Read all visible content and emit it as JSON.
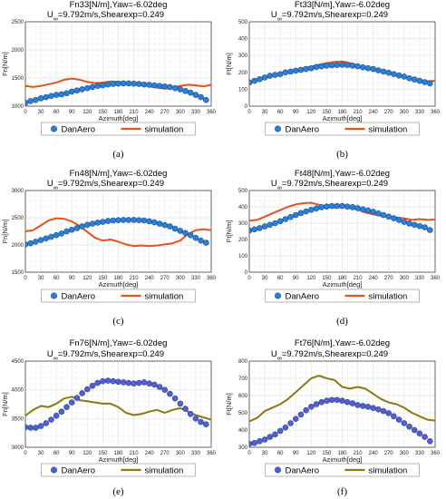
{
  "colors": {
    "danaero_face": "#2b7fd4",
    "danaero_face_dark": "#5a5ad2",
    "danaero_edge": "#1f4f8f",
    "sim_red": "#e8521e",
    "sim_olive": "#8a7a10",
    "grid": "#e6e6e6",
    "axis": "#444444"
  },
  "chart_data": [
    {
      "type": "line",
      "panel_label": "(a)",
      "title_line1": "Fn33[N/m],Yaw=-6.02deg",
      "title_line2_prefix": "U",
      "title_line2_sub": "∞",
      "title_line2_rest": "=9.792m/s,Shearexp=0.249",
      "xlabel": "Azimuth[deg]",
      "ylabel": "Fn[N/m]",
      "xlim": [
        0,
        360
      ],
      "ylim": [
        1000,
        2500
      ],
      "xticks": [
        0,
        30,
        60,
        90,
        120,
        150,
        180,
        210,
        240,
        270,
        300,
        330,
        360
      ],
      "yticks": [
        1000,
        1500,
        2000,
        2500
      ],
      "grid": true,
      "sim_color": "sim_red",
      "marker_color": "danaero_face",
      "legend": {
        "position": "bottom",
        "entries": [
          "DanAero",
          "simulation"
        ]
      },
      "series": [
        {
          "name": "DanAero",
          "x": [
            0,
            10,
            20,
            30,
            40,
            50,
            60,
            70,
            80,
            90,
            100,
            110,
            120,
            130,
            140,
            150,
            160,
            170,
            180,
            190,
            200,
            210,
            220,
            230,
            240,
            250,
            260,
            270,
            280,
            290,
            300,
            310,
            320,
            330,
            340,
            350
          ],
          "values": [
            1060,
            1090,
            1110,
            1140,
            1160,
            1180,
            1200,
            1210,
            1230,
            1260,
            1280,
            1300,
            1320,
            1340,
            1360,
            1370,
            1385,
            1395,
            1400,
            1405,
            1405,
            1400,
            1395,
            1385,
            1380,
            1370,
            1360,
            1350,
            1340,
            1320,
            1300,
            1270,
            1240,
            1200,
            1160,
            1110
          ]
        },
        {
          "name": "simulation",
          "x": [
            0,
            15,
            30,
            45,
            60,
            75,
            90,
            105,
            120,
            135,
            150,
            165,
            180,
            195,
            210,
            225,
            240,
            255,
            270,
            285,
            300,
            315,
            330,
            345,
            360
          ],
          "values": [
            1360,
            1340,
            1360,
            1390,
            1420,
            1470,
            1490,
            1470,
            1430,
            1410,
            1420,
            1440,
            1430,
            1410,
            1400,
            1390,
            1350,
            1330,
            1310,
            1330,
            1360,
            1380,
            1370,
            1350,
            1380
          ]
        }
      ]
    },
    {
      "type": "line",
      "panel_label": "(b)",
      "title_line1": "Ft33[N/m],Yaw=-6.02deg",
      "title_line2_prefix": "U",
      "title_line2_sub": "∞",
      "title_line2_rest": "=9.792m/s,Shearexp=0.249",
      "xlabel": "Azimuth[deg]",
      "ylabel": "Ft[N/m]",
      "xlim": [
        0,
        360
      ],
      "ylim": [
        0,
        500
      ],
      "xticks": [
        0,
        30,
        60,
        90,
        120,
        150,
        180,
        210,
        240,
        270,
        300,
        330,
        360
      ],
      "yticks": [
        0,
        100,
        200,
        300,
        400,
        500
      ],
      "grid": true,
      "sim_color": "sim_red",
      "marker_color": "danaero_face",
      "legend": {
        "position": "bottom",
        "entries": [
          "DanAero",
          "simulation"
        ]
      },
      "series": [
        {
          "name": "DanAero",
          "x": [
            0,
            10,
            20,
            30,
            40,
            50,
            60,
            70,
            80,
            90,
            100,
            110,
            120,
            130,
            140,
            150,
            160,
            170,
            180,
            190,
            200,
            210,
            220,
            230,
            240,
            250,
            260,
            270,
            280,
            290,
            300,
            310,
            320,
            330,
            340,
            350
          ],
          "values": [
            140,
            150,
            160,
            170,
            180,
            185,
            190,
            200,
            205,
            210,
            215,
            220,
            225,
            232,
            236,
            240,
            242,
            244,
            245,
            244,
            240,
            236,
            230,
            225,
            220,
            212,
            205,
            198,
            190,
            182,
            175,
            165,
            158,
            150,
            142,
            135
          ]
        },
        {
          "name": "simulation",
          "x": [
            0,
            15,
            30,
            45,
            60,
            75,
            90,
            105,
            120,
            135,
            150,
            165,
            180,
            195,
            210,
            225,
            240,
            255,
            270,
            285,
            300,
            315,
            330,
            345,
            360
          ],
          "values": [
            140,
            150,
            165,
            180,
            195,
            205,
            215,
            225,
            235,
            245,
            255,
            262,
            265,
            255,
            240,
            228,
            218,
            205,
            195,
            185,
            175,
            165,
            155,
            148,
            150
          ]
        }
      ]
    },
    {
      "type": "line",
      "panel_label": "(c)",
      "title_line1": "Fn48[N/m],Yaw=-6.02deg",
      "title_line2_prefix": "U",
      "title_line2_sub": "∞",
      "title_line2_rest": "=9.792m/s,Shearexp=0.249",
      "xlabel": "Azimuth[deg]",
      "ylabel": "Fn[N/m]",
      "xlim": [
        0,
        360
      ],
      "ylim": [
        1500,
        3000
      ],
      "xticks": [
        0,
        30,
        60,
        90,
        120,
        150,
        180,
        210,
        240,
        270,
        300,
        330,
        360
      ],
      "yticks": [
        1500,
        2000,
        2500,
        3000
      ],
      "grid": true,
      "sim_color": "sim_red",
      "marker_color": "danaero_face",
      "legend": {
        "position": "bottom",
        "entries": [
          "DanAero",
          "simulation"
        ]
      },
      "series": [
        {
          "name": "DanAero",
          "x": [
            0,
            10,
            20,
            30,
            40,
            50,
            60,
            70,
            80,
            90,
            100,
            110,
            120,
            130,
            140,
            150,
            160,
            170,
            180,
            190,
            200,
            210,
            220,
            230,
            240,
            250,
            260,
            270,
            280,
            290,
            300,
            310,
            320,
            330,
            340,
            350
          ],
          "values": [
            2010,
            2030,
            2060,
            2090,
            2120,
            2150,
            2180,
            2210,
            2250,
            2280,
            2310,
            2340,
            2370,
            2390,
            2410,
            2425,
            2440,
            2450,
            2455,
            2460,
            2460,
            2460,
            2455,
            2450,
            2435,
            2415,
            2390,
            2365,
            2340,
            2300,
            2260,
            2220,
            2180,
            2130,
            2080,
            2040
          ]
        },
        {
          "name": "simulation",
          "x": [
            0,
            15,
            30,
            45,
            60,
            75,
            90,
            105,
            120,
            135,
            150,
            165,
            180,
            195,
            210,
            225,
            240,
            255,
            270,
            285,
            300,
            315,
            330,
            345,
            360
          ],
          "values": [
            2250,
            2270,
            2360,
            2450,
            2490,
            2480,
            2430,
            2350,
            2240,
            2130,
            2080,
            2100,
            2060,
            2010,
            1980,
            1990,
            1980,
            1990,
            2010,
            2030,
            2080,
            2200,
            2270,
            2290,
            2270
          ]
        }
      ]
    },
    {
      "type": "line",
      "panel_label": "(d)",
      "title_line1": "Ft48[N/m],Yaw=-6.02deg",
      "title_line2_prefix": "U",
      "title_line2_sub": "∞",
      "title_line2_rest": "=9.792m/s,Shearexp=0.249",
      "xlabel": "Azimuth[deg]",
      "ylabel": "Ft[N/m]",
      "xlim": [
        0,
        360
      ],
      "ylim": [
        0,
        500
      ],
      "xticks": [
        0,
        30,
        60,
        90,
        120,
        150,
        180,
        210,
        240,
        270,
        300,
        330,
        360
      ],
      "yticks": [
        0,
        100,
        200,
        300,
        400,
        500
      ],
      "grid": true,
      "sim_color": "sim_red",
      "marker_color": "danaero_face",
      "legend": {
        "position": "bottom",
        "entries": [
          "DanAero",
          "simulation"
        ]
      },
      "series": [
        {
          "name": "DanAero",
          "x": [
            0,
            10,
            20,
            30,
            40,
            50,
            60,
            70,
            80,
            90,
            100,
            110,
            120,
            130,
            140,
            150,
            160,
            170,
            180,
            190,
            200,
            210,
            220,
            230,
            240,
            250,
            260,
            270,
            280,
            290,
            300,
            310,
            320,
            330,
            340,
            350
          ],
          "values": [
            255,
            262,
            270,
            280,
            290,
            300,
            312,
            325,
            338,
            350,
            362,
            372,
            382,
            390,
            398,
            402,
            405,
            405,
            405,
            402,
            398,
            392,
            385,
            378,
            370,
            360,
            350,
            340,
            330,
            320,
            308,
            298,
            290,
            282,
            275,
            258
          ]
        },
        {
          "name": "simulation",
          "x": [
            0,
            15,
            30,
            45,
            60,
            75,
            90,
            105,
            120,
            135,
            150,
            165,
            180,
            195,
            210,
            225,
            240,
            255,
            270,
            285,
            300,
            315,
            330,
            345,
            360
          ],
          "values": [
            315,
            320,
            340,
            360,
            380,
            400,
            415,
            422,
            425,
            412,
            400,
            395,
            400,
            395,
            385,
            365,
            355,
            345,
            340,
            335,
            330,
            320,
            325,
            320,
            322
          ]
        }
      ]
    },
    {
      "type": "line",
      "panel_label": "(e)",
      "title_line1": "Fn76[N/m],Yaw=-6.02deg",
      "title_line2_prefix": "U",
      "title_line2_sub": "∞",
      "title_line2_rest": "=9.792m/s,Shearexp=0.249",
      "xlabel": "Azimuth[deg]",
      "ylabel": "Fn[N/m]",
      "xlim": [
        0,
        360
      ],
      "ylim": [
        3000,
        4500
      ],
      "xticks": [
        0,
        30,
        60,
        90,
        120,
        150,
        180,
        210,
        240,
        270,
        300,
        330,
        360
      ],
      "yticks": [
        3000,
        3500,
        4000,
        4500
      ],
      "grid": true,
      "sim_color": "sim_olive",
      "marker_color": "danaero_face_dark",
      "legend": {
        "position": "bottom",
        "entries": [
          "DanAero",
          "simulation"
        ]
      },
      "series": [
        {
          "name": "DanAero",
          "x": [
            0,
            10,
            20,
            30,
            40,
            50,
            60,
            70,
            80,
            90,
            100,
            110,
            120,
            130,
            140,
            150,
            160,
            170,
            180,
            190,
            200,
            210,
            220,
            230,
            240,
            250,
            260,
            270,
            280,
            290,
            300,
            310,
            320,
            330,
            340,
            350
          ],
          "values": [
            3350,
            3340,
            3340,
            3370,
            3420,
            3480,
            3550,
            3620,
            3700,
            3780,
            3860,
            3940,
            4010,
            4070,
            4120,
            4150,
            4160,
            4150,
            4140,
            4130,
            4120,
            4110,
            4120,
            4130,
            4110,
            4090,
            4050,
            4000,
            3930,
            3850,
            3760,
            3670,
            3580,
            3500,
            3440,
            3400
          ]
        },
        {
          "name": "simulation",
          "x": [
            0,
            15,
            30,
            45,
            60,
            75,
            90,
            105,
            120,
            135,
            150,
            165,
            180,
            195,
            210,
            225,
            240,
            255,
            270,
            285,
            300,
            315,
            330,
            345,
            360
          ],
          "values": [
            3550,
            3650,
            3720,
            3700,
            3760,
            3850,
            3880,
            3820,
            3800,
            3780,
            3760,
            3760,
            3700,
            3600,
            3560,
            3580,
            3620,
            3650,
            3600,
            3650,
            3680,
            3620,
            3560,
            3520,
            3480
          ]
        }
      ]
    },
    {
      "type": "line",
      "panel_label": "(f)",
      "title_line1": "Ft76[N/m],Yaw=-6.02deg",
      "title_line2_prefix": "U",
      "title_line2_sub": "∞",
      "title_line2_rest": "=9.792m/s,Shearexp=0.249",
      "xlabel": "Azimuth[deg]",
      "ylabel": "Ft[N/m]",
      "xlim": [
        0,
        360
      ],
      "ylim": [
        300,
        800
      ],
      "xticks": [
        0,
        30,
        60,
        90,
        120,
        150,
        180,
        210,
        240,
        270,
        300,
        330,
        360
      ],
      "yticks": [
        300,
        400,
        500,
        600,
        700,
        800
      ],
      "grid": true,
      "sim_color": "sim_olive",
      "marker_color": "danaero_face_dark",
      "legend": {
        "position": "bottom",
        "entries": [
          "DanAero",
          "simulation"
        ]
      },
      "series": [
        {
          "name": "DanAero",
          "x": [
            0,
            10,
            20,
            30,
            40,
            50,
            60,
            70,
            80,
            90,
            100,
            110,
            120,
            130,
            140,
            150,
            160,
            170,
            180,
            190,
            200,
            210,
            220,
            230,
            240,
            250,
            260,
            270,
            280,
            290,
            300,
            310,
            320,
            330,
            340,
            350
          ],
          "values": [
            320,
            325,
            335,
            345,
            360,
            375,
            395,
            415,
            440,
            465,
            490,
            515,
            535,
            550,
            562,
            570,
            575,
            575,
            570,
            562,
            555,
            545,
            540,
            535,
            528,
            520,
            510,
            498,
            480,
            460,
            440,
            420,
            400,
            380,
            360,
            335
          ]
        },
        {
          "name": "simulation",
          "x": [
            0,
            15,
            30,
            45,
            60,
            75,
            90,
            105,
            120,
            135,
            150,
            165,
            180,
            195,
            210,
            225,
            240,
            255,
            270,
            285,
            300,
            315,
            330,
            345,
            360
          ],
          "values": [
            450,
            470,
            510,
            530,
            550,
            580,
            620,
            660,
            700,
            715,
            700,
            690,
            650,
            640,
            650,
            640,
            610,
            580,
            560,
            550,
            530,
            500,
            480,
            460,
            455
          ]
        }
      ]
    }
  ]
}
